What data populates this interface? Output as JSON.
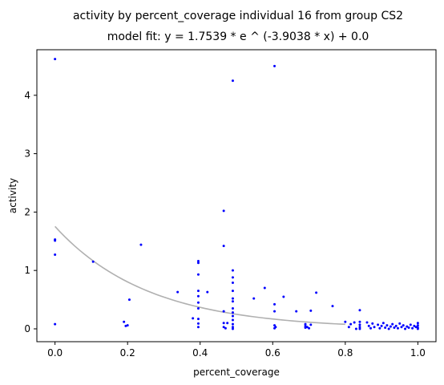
{
  "chart_data": {
    "type": "scatter",
    "title": "activity by percent_coverage individual 16 from group CS2",
    "subtitle": "model fit: y = 1.7539 * e ^ (-3.9038 * x) + 0.0",
    "xlabel": "percent_coverage",
    "ylabel": "activity",
    "xlim": [
      -0.05,
      1.05
    ],
    "ylim": [
      -0.22,
      4.78
    ],
    "xticks": [
      "0.0",
      "0.2",
      "0.4",
      "0.6",
      "0.8",
      "1.0"
    ],
    "yticks": [
      "0",
      "1",
      "2",
      "3",
      "4"
    ],
    "grid": false,
    "legend": "none",
    "points_color": "#0000ff",
    "fit_color": "#b0b0b0",
    "fit": {
      "a": 1.7539,
      "b": -3.9038,
      "c": 0.0,
      "x_min": 0.0,
      "x_max": 0.8
    },
    "points": [
      [
        0.0,
        4.62
      ],
      [
        0.0,
        1.53
      ],
      [
        0.0,
        1.51
      ],
      [
        0.0,
        1.27
      ],
      [
        0.0,
        0.08
      ],
      [
        0.105,
        1.15
      ],
      [
        0.19,
        0.12
      ],
      [
        0.195,
        0.05
      ],
      [
        0.2,
        0.06
      ],
      [
        0.205,
        0.5
      ],
      [
        0.237,
        1.44
      ],
      [
        0.338,
        0.63
      ],
      [
        0.38,
        0.18
      ],
      [
        0.395,
        1.16
      ],
      [
        0.395,
        1.13
      ],
      [
        0.395,
        0.93
      ],
      [
        0.395,
        0.65
      ],
      [
        0.395,
        0.56
      ],
      [
        0.395,
        0.45
      ],
      [
        0.395,
        0.35
      ],
      [
        0.395,
        0.17
      ],
      [
        0.395,
        0.09
      ],
      [
        0.395,
        0.03
      ],
      [
        0.42,
        0.63
      ],
      [
        0.465,
        2.02
      ],
      [
        0.465,
        1.42
      ],
      [
        0.465,
        0.3
      ],
      [
        0.465,
        0.1
      ],
      [
        0.465,
        0.03
      ],
      [
        0.47,
        0.01
      ],
      [
        0.475,
        0.1
      ],
      [
        0.49,
        4.25
      ],
      [
        0.49,
        1.0
      ],
      [
        0.49,
        0.88
      ],
      [
        0.49,
        0.79
      ],
      [
        0.49,
        0.65
      ],
      [
        0.49,
        0.52
      ],
      [
        0.49,
        0.47
      ],
      [
        0.49,
        0.35
      ],
      [
        0.49,
        0.28
      ],
      [
        0.49,
        0.22
      ],
      [
        0.49,
        0.15
      ],
      [
        0.49,
        0.08
      ],
      [
        0.49,
        0.03
      ],
      [
        0.49,
        0.0
      ],
      [
        0.548,
        0.52
      ],
      [
        0.578,
        0.7
      ],
      [
        0.605,
        4.5
      ],
      [
        0.605,
        0.42
      ],
      [
        0.605,
        0.3
      ],
      [
        0.605,
        0.06
      ],
      [
        0.605,
        0.01
      ],
      [
        0.608,
        0.03
      ],
      [
        0.63,
        0.55
      ],
      [
        0.665,
        0.3
      ],
      [
        0.69,
        0.08
      ],
      [
        0.69,
        0.05
      ],
      [
        0.69,
        0.02
      ],
      [
        0.695,
        0.03
      ],
      [
        0.7,
        0.01
      ],
      [
        0.705,
        0.07
      ],
      [
        0.705,
        0.31
      ],
      [
        0.72,
        0.62
      ],
      [
        0.765,
        0.39
      ],
      [
        0.8,
        0.12
      ],
      [
        0.81,
        0.03
      ],
      [
        0.815,
        0.08
      ],
      [
        0.825,
        0.11
      ],
      [
        0.83,
        0.0
      ],
      [
        0.84,
        0.32
      ],
      [
        0.84,
        0.12
      ],
      [
        0.84,
        0.07
      ],
      [
        0.84,
        0.03
      ],
      [
        0.84,
        0.0
      ],
      [
        0.86,
        0.11
      ],
      [
        0.865,
        0.05
      ],
      [
        0.87,
        0.01
      ],
      [
        0.875,
        0.09
      ],
      [
        0.88,
        0.03
      ],
      [
        0.89,
        0.07
      ],
      [
        0.895,
        0.01
      ],
      [
        0.9,
        0.05
      ],
      [
        0.905,
        0.1
      ],
      [
        0.91,
        0.02
      ],
      [
        0.915,
        0.06
      ],
      [
        0.92,
        0.0
      ],
      [
        0.925,
        0.04
      ],
      [
        0.93,
        0.08
      ],
      [
        0.935,
        0.02
      ],
      [
        0.94,
        0.05
      ],
      [
        0.945,
        0.01
      ],
      [
        0.95,
        0.09
      ],
      [
        0.955,
        0.03
      ],
      [
        0.96,
        0.06
      ],
      [
        0.965,
        0.0
      ],
      [
        0.97,
        0.04
      ],
      [
        0.975,
        0.02
      ],
      [
        0.98,
        0.07
      ],
      [
        0.985,
        0.01
      ],
      [
        0.99,
        0.05
      ],
      [
        0.995,
        0.03
      ],
      [
        1.0,
        0.02
      ],
      [
        1.0,
        0.06
      ],
      [
        1.0,
        0.1
      ],
      [
        1.0,
        0.0
      ]
    ]
  }
}
